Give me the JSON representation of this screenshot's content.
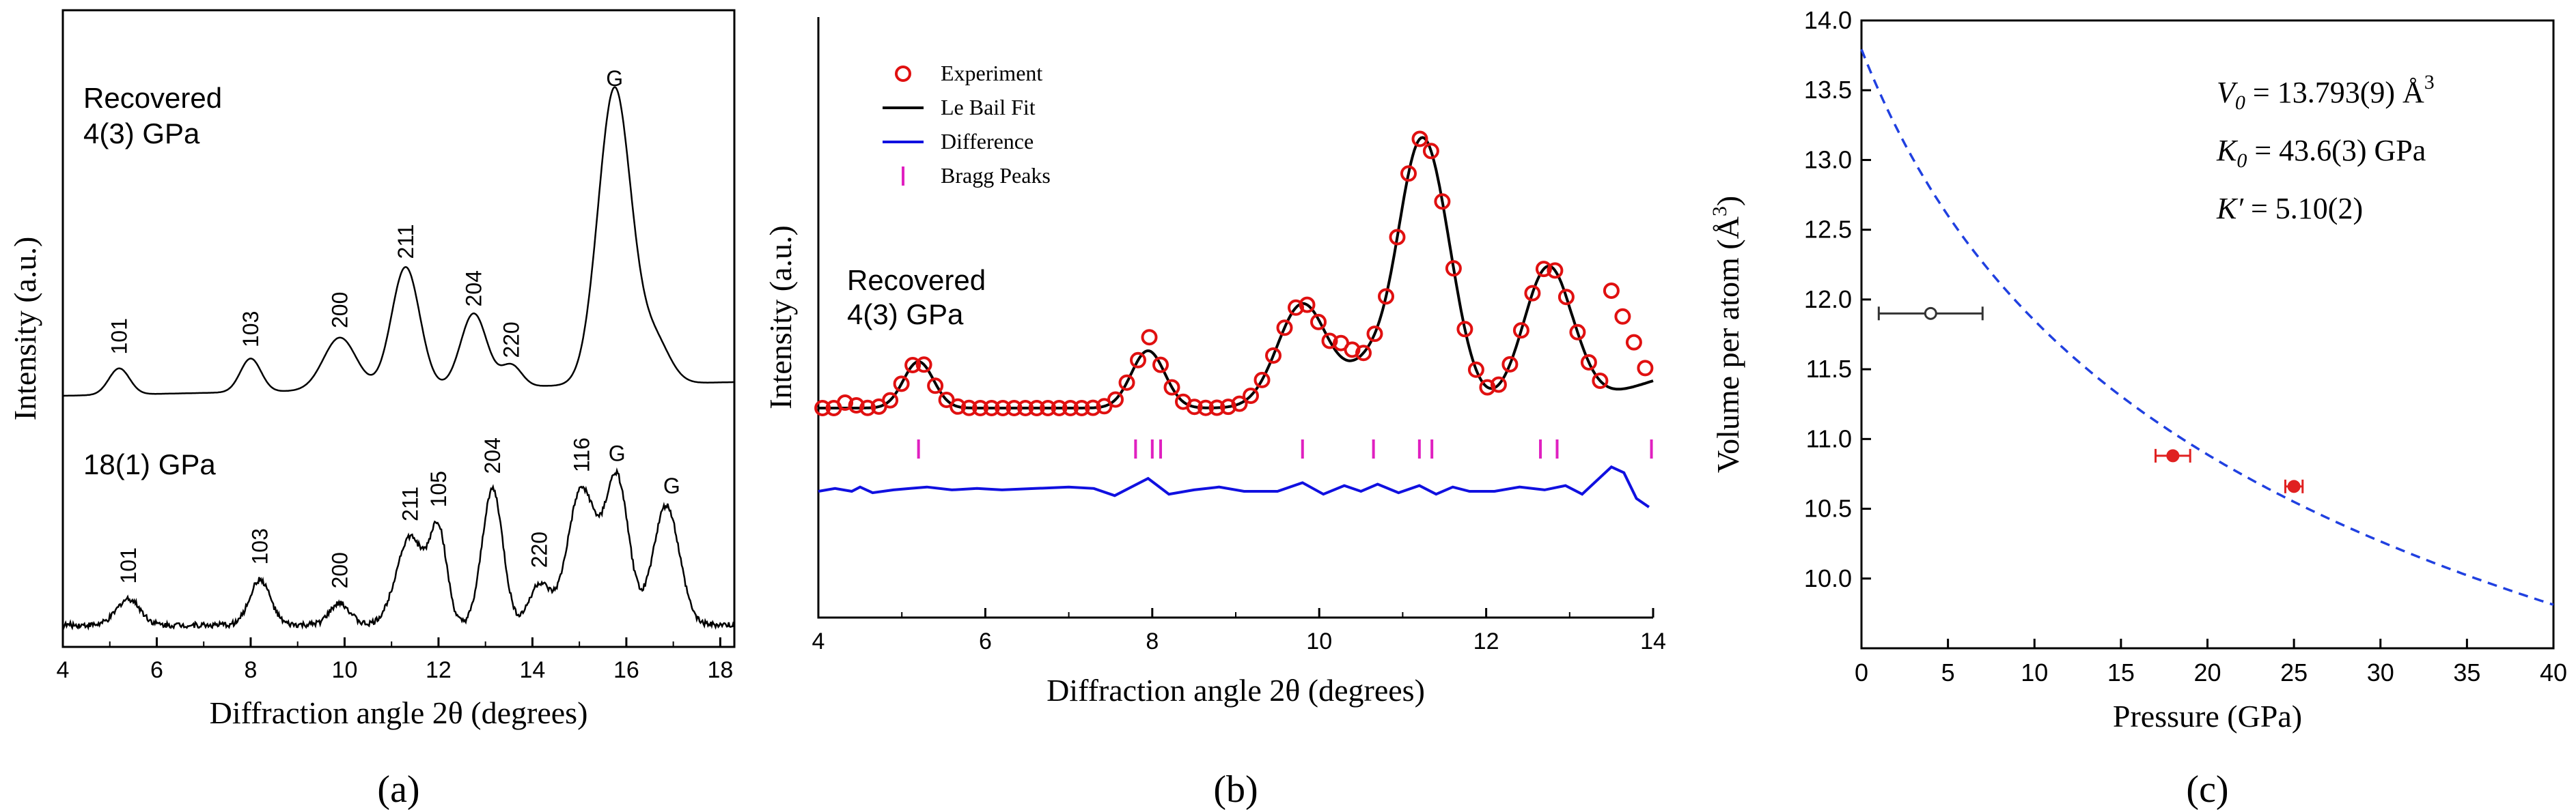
{
  "panels": {
    "a": {
      "caption": "(a)"
    },
    "b": {
      "caption": "(b)"
    },
    "c": {
      "caption": "(c)"
    }
  },
  "chart_data": [
    {
      "id": "a",
      "type": "line",
      "title": "",
      "xlabel": "Diffraction angle 2θ (degrees)",
      "ylabel": "Intensity (a.u.)",
      "xlim": [
        4,
        18.3
      ],
      "xticks": [
        4,
        6,
        8,
        10,
        12,
        14,
        16,
        18
      ],
      "yticks": [],
      "grid": false,
      "series": [
        {
          "name": "Recovered 4(3) GPa",
          "label_lines": [
            "Recovered",
            "4(3) GPa"
          ],
          "baseline": 0,
          "peaks": [
            {
              "x": 5.2,
              "h": 0.55,
              "w": 0.22
            },
            {
              "x": 8.0,
              "h": 0.7,
              "w": 0.22
            },
            {
              "x": 9.9,
              "h": 1.1,
              "w": 0.35
            },
            {
              "x": 11.3,
              "h": 2.55,
              "w": 0.3
            },
            {
              "x": 12.75,
              "h": 1.55,
              "w": 0.28
            },
            {
              "x": 13.55,
              "h": 0.45,
              "w": 0.22
            },
            {
              "x": 15.75,
              "h": 6.2,
              "w": 0.35
            },
            {
              "x": 16.6,
              "h": 0.9,
              "w": 0.32
            }
          ],
          "peak_labels": [
            {
              "x": 5.2,
              "text": "101"
            },
            {
              "x": 8.0,
              "text": "103"
            },
            {
              "x": 9.9,
              "text": "200"
            },
            {
              "x": 11.3,
              "text": "211"
            },
            {
              "x": 12.75,
              "text": "204"
            },
            {
              "x": 13.55,
              "text": "220"
            },
            {
              "x": 15.75,
              "text": "G"
            }
          ]
        },
        {
          "name": "18(1) GPa",
          "label_lines": [
            "18(1) GPa"
          ],
          "baseline": -4.8,
          "peaks": [
            {
              "x": 5.4,
              "h": 0.55,
              "w": 0.25
            },
            {
              "x": 8.2,
              "h": 0.95,
              "w": 0.22
            },
            {
              "x": 9.9,
              "h": 0.45,
              "w": 0.22
            },
            {
              "x": 11.4,
              "h": 1.85,
              "w": 0.3
            },
            {
              "x": 12.0,
              "h": 1.9,
              "w": 0.18
            },
            {
              "x": 13.15,
              "h": 2.85,
              "w": 0.22
            },
            {
              "x": 14.15,
              "h": 0.85,
              "w": 0.22
            },
            {
              "x": 15.05,
              "h": 2.85,
              "w": 0.3
            },
            {
              "x": 15.8,
              "h": 3.05,
              "w": 0.25
            },
            {
              "x": 16.85,
              "h": 2.5,
              "w": 0.28
            }
          ],
          "peak_labels": [
            {
              "x": 5.4,
              "text": "101"
            },
            {
              "x": 8.2,
              "text": "103"
            },
            {
              "x": 9.9,
              "text": "200"
            },
            {
              "x": 11.4,
              "text": "211"
            },
            {
              "x": 12.0,
              "text": "105"
            },
            {
              "x": 13.15,
              "text": "204"
            },
            {
              "x": 14.15,
              "text": "220"
            },
            {
              "x": 15.05,
              "text": "116"
            },
            {
              "x": 15.8,
              "text": "G"
            },
            {
              "x": 16.85,
              "text": "G"
            }
          ]
        }
      ]
    },
    {
      "id": "b",
      "type": "scatter",
      "title": "",
      "xlabel": "Diffraction angle 2θ (degrees)",
      "ylabel": "Intensity (a.u.)",
      "xlim": [
        4,
        14
      ],
      "xticks": [
        4,
        6,
        8,
        10,
        12,
        14
      ],
      "yticks": [],
      "grid": false,
      "annotation_lines": [
        "Recovered",
        "4(3) GPa"
      ],
      "legend_position": "top-left",
      "legend": [
        "Experiment",
        "Le Bail Fit",
        "Difference",
        "Bragg Peaks"
      ],
      "fit_peaks": [
        {
          "x": 5.2,
          "h": 0.85,
          "w": 0.18
        },
        {
          "x": 7.95,
          "h": 1.05,
          "w": 0.2
        },
        {
          "x": 9.8,
          "h": 1.9,
          "w": 0.3
        },
        {
          "x": 10.65,
          "h": 0.8,
          "w": 0.3
        },
        {
          "x": 11.3,
          "h": 4.3,
          "w": 0.3
        },
        {
          "x": 11.1,
          "h": 0.8,
          "w": 0.2
        },
        {
          "x": 12.75,
          "h": 2.6,
          "w": 0.3
        }
      ],
      "fit_baseline": 0.0,
      "experiment_x_range": [
        4.05,
        13.95
      ],
      "experiment_step": 0.135,
      "experiment_offsets": [
        {
          "x": 4.3,
          "dy": 0.1
        },
        {
          "x": 4.45,
          "dy": 0.05
        },
        {
          "x": 5.35,
          "dy": -0.05
        },
        {
          "x": 7.95,
          "dy": 0.25
        },
        {
          "x": 9.95,
          "dy": -0.05
        },
        {
          "x": 10.25,
          "dy": 0.25
        },
        {
          "x": 10.4,
          "dy": 0.2
        },
        {
          "x": 13.5,
          "dy": 0.55
        },
        {
          "x": 13.65,
          "dy": 0.5
        },
        {
          "x": 13.8,
          "dy": 0.15
        },
        {
          "x": 13.95,
          "dy": -0.25
        }
      ],
      "bragg_positions": [
        5.2,
        7.8,
        8.0,
        8.1,
        9.8,
        10.65,
        11.2,
        11.35,
        12.65,
        12.85,
        13.98
      ],
      "difference_points": [
        [
          4.0,
          0.0
        ],
        [
          4.2,
          0.1
        ],
        [
          4.4,
          0.0
        ],
        [
          4.5,
          0.15
        ],
        [
          4.65,
          -0.05
        ],
        [
          4.9,
          0.05
        ],
        [
          5.1,
          0.1
        ],
        [
          5.3,
          0.15
        ],
        [
          5.6,
          0.05
        ],
        [
          5.9,
          0.1
        ],
        [
          6.2,
          0.05
        ],
        [
          6.6,
          0.1
        ],
        [
          7.0,
          0.15
        ],
        [
          7.3,
          0.1
        ],
        [
          7.55,
          -0.15
        ],
        [
          7.95,
          0.45
        ],
        [
          8.2,
          -0.1
        ],
        [
          8.5,
          0.05
        ],
        [
          8.8,
          0.15
        ],
        [
          9.1,
          0.0
        ],
        [
          9.5,
          0.0
        ],
        [
          9.8,
          0.3
        ],
        [
          10.05,
          -0.1
        ],
        [
          10.3,
          0.2
        ],
        [
          10.5,
          0.0
        ],
        [
          10.7,
          0.25
        ],
        [
          10.95,
          -0.05
        ],
        [
          11.2,
          0.2
        ],
        [
          11.4,
          -0.1
        ],
        [
          11.6,
          0.15
        ],
        [
          11.8,
          0.0
        ],
        [
          12.1,
          0.0
        ],
        [
          12.4,
          0.15
        ],
        [
          12.7,
          0.05
        ],
        [
          12.95,
          0.2
        ],
        [
          13.15,
          -0.1
        ],
        [
          13.5,
          0.85
        ],
        [
          13.65,
          0.65
        ],
        [
          13.8,
          -0.25
        ],
        [
          13.95,
          -0.55
        ]
      ],
      "difference_offset": -2.6
    },
    {
      "id": "c",
      "type": "scatter",
      "title": "",
      "xlabel": "Pressure (GPa)",
      "ylabel_text": "Volume per atom (Å",
      "ylabel_sup": "3",
      "ylabel_close": ")",
      "xlim": [
        0,
        40
      ],
      "ylim": [
        9.5,
        14.0
      ],
      "xticks": [
        0,
        5,
        10,
        15,
        20,
        25,
        30,
        35,
        40
      ],
      "yticks": [
        10.0,
        10.5,
        11.0,
        11.5,
        12.0,
        12.5,
        13.0,
        13.5,
        14.0
      ],
      "grid": false,
      "eos": {
        "V0": 13.793,
        "K0": 43.6,
        "Kp": 5.1
      },
      "points": [
        {
          "x": 4.0,
          "y": 11.9,
          "xerr": 3.0,
          "fill": "white",
          "stroke": "#333333"
        },
        {
          "x": 18.0,
          "y": 10.88,
          "xerr": 1.0,
          "fill": "#e02020",
          "stroke": "#e02020"
        },
        {
          "x": 25.0,
          "y": 10.66,
          "xerr": 0.5,
          "fill": "#e02020",
          "stroke": "#e02020"
        }
      ],
      "annotations": [
        {
          "sym": "V",
          "sub": "0",
          "text": " = 13.793(9) Å",
          "sup": "3"
        },
        {
          "sym": "K",
          "sub": "0",
          "text": " = 43.6(3) GPa",
          "sup": ""
        },
        {
          "sym": "K′",
          "sub": "",
          "text": " = 5.10(2)",
          "sup": ""
        }
      ]
    }
  ],
  "colors": {
    "axis": "#000000",
    "experiment": "#e01010",
    "fit": "#000000",
    "difference": "#1010e0",
    "bragg": "#e020c0",
    "eos_curve": "#2040e0"
  }
}
